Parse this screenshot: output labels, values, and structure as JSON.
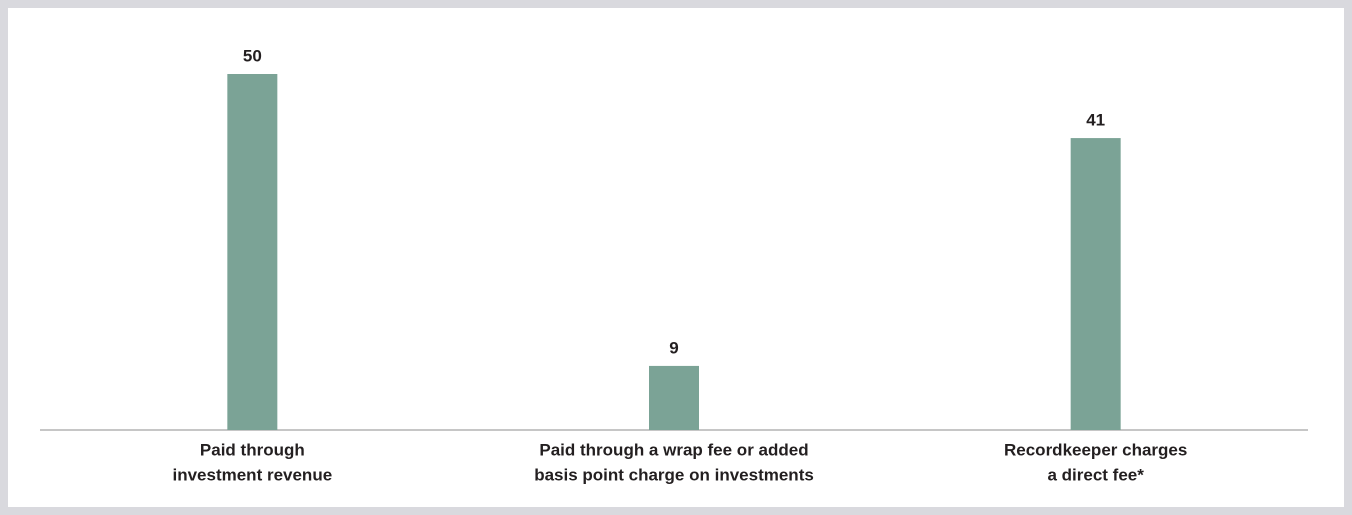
{
  "chart_data": {
    "type": "bar",
    "categories": [
      [
        "Paid through",
        "investment revenue"
      ],
      [
        "Paid through a wrap fee or added",
        "basis point charge on investments"
      ],
      [
        "Recordkeeper charges",
        "a direct fee*"
      ]
    ],
    "values": [
      50,
      9,
      41
    ],
    "color": "#7ba396",
    "ylim": [
      0,
      50
    ]
  }
}
